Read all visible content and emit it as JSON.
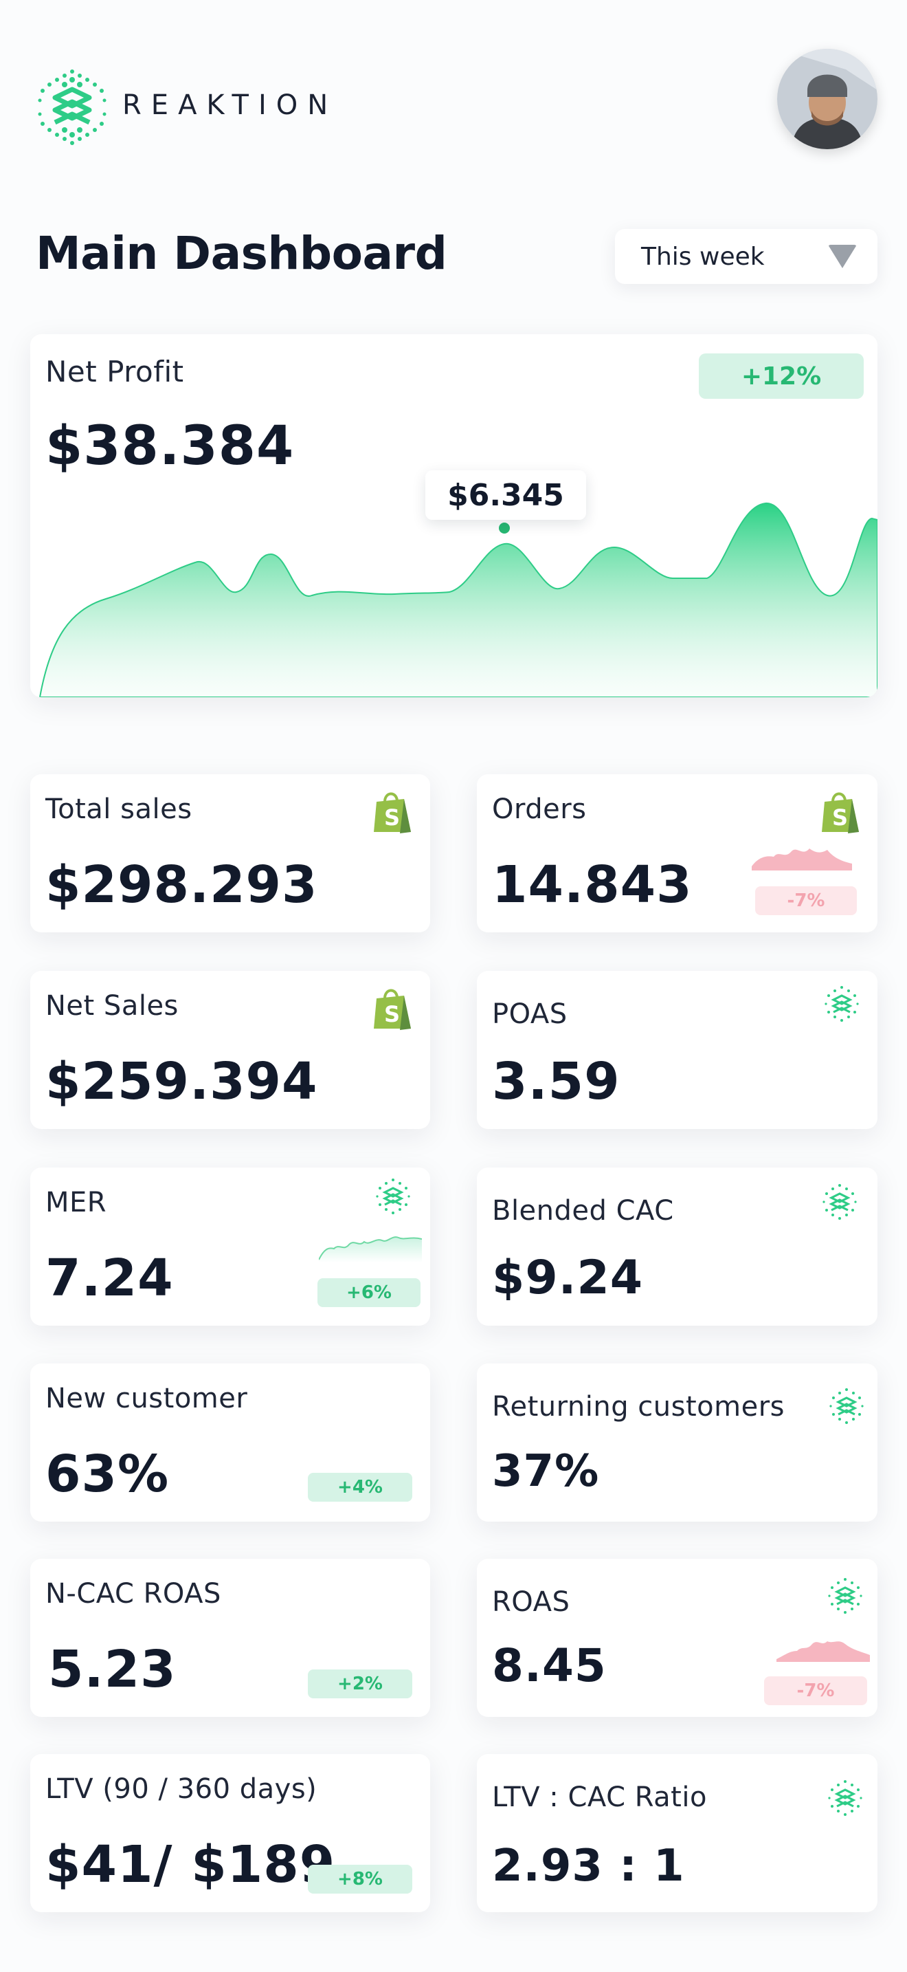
{
  "brand": {
    "name": "REAKTION"
  },
  "page_title": "Main Dashboard",
  "period_selector": {
    "value": "This week"
  },
  "net_profit": {
    "label": "Net Profit",
    "value": "$38.384",
    "change": "+12%",
    "tooltip_value": "$6.345"
  },
  "metrics": [
    {
      "label": "Total sales",
      "value": "$298.293",
      "icon": "shopify-icon"
    },
    {
      "label": "Orders",
      "value": "14.843",
      "icon": "shopify-icon",
      "change": "-7%",
      "trend": "down"
    },
    {
      "label": "Net Sales",
      "value": "$259.394",
      "icon": "shopify-icon"
    },
    {
      "label": "POAS",
      "value": "3.59",
      "icon": "reaktion-icon"
    },
    {
      "label": "MER",
      "value": "7.24",
      "icon": "reaktion-icon",
      "change": "+6%",
      "trend": "up"
    },
    {
      "label": "Blended CAC",
      "value": "$9.24",
      "icon": "reaktion-icon"
    },
    {
      "label": "New customer",
      "value": "63%",
      "change": "+4%",
      "trend": "up"
    },
    {
      "label": "Returning customers",
      "value": "37%",
      "icon": "reaktion-icon"
    },
    {
      "label": "N-CAC ROAS",
      "value": "5.23",
      "change": "+2%",
      "trend": "up"
    },
    {
      "label": "ROAS",
      "value": "8.45",
      "icon": "reaktion-icon",
      "change": "-7%",
      "trend": "down"
    },
    {
      "label": "LTV (90 / 360 days)",
      "value": "$41/ $189",
      "change": "+8%",
      "trend": "up"
    },
    {
      "label": "LTV : CAC Ratio",
      "value": "2.93 : 1",
      "icon": "reaktion-icon"
    }
  ],
  "colors": {
    "accent": "#2ecc87",
    "negative": "#f3a3ae",
    "shopify": "#95bf47"
  }
}
